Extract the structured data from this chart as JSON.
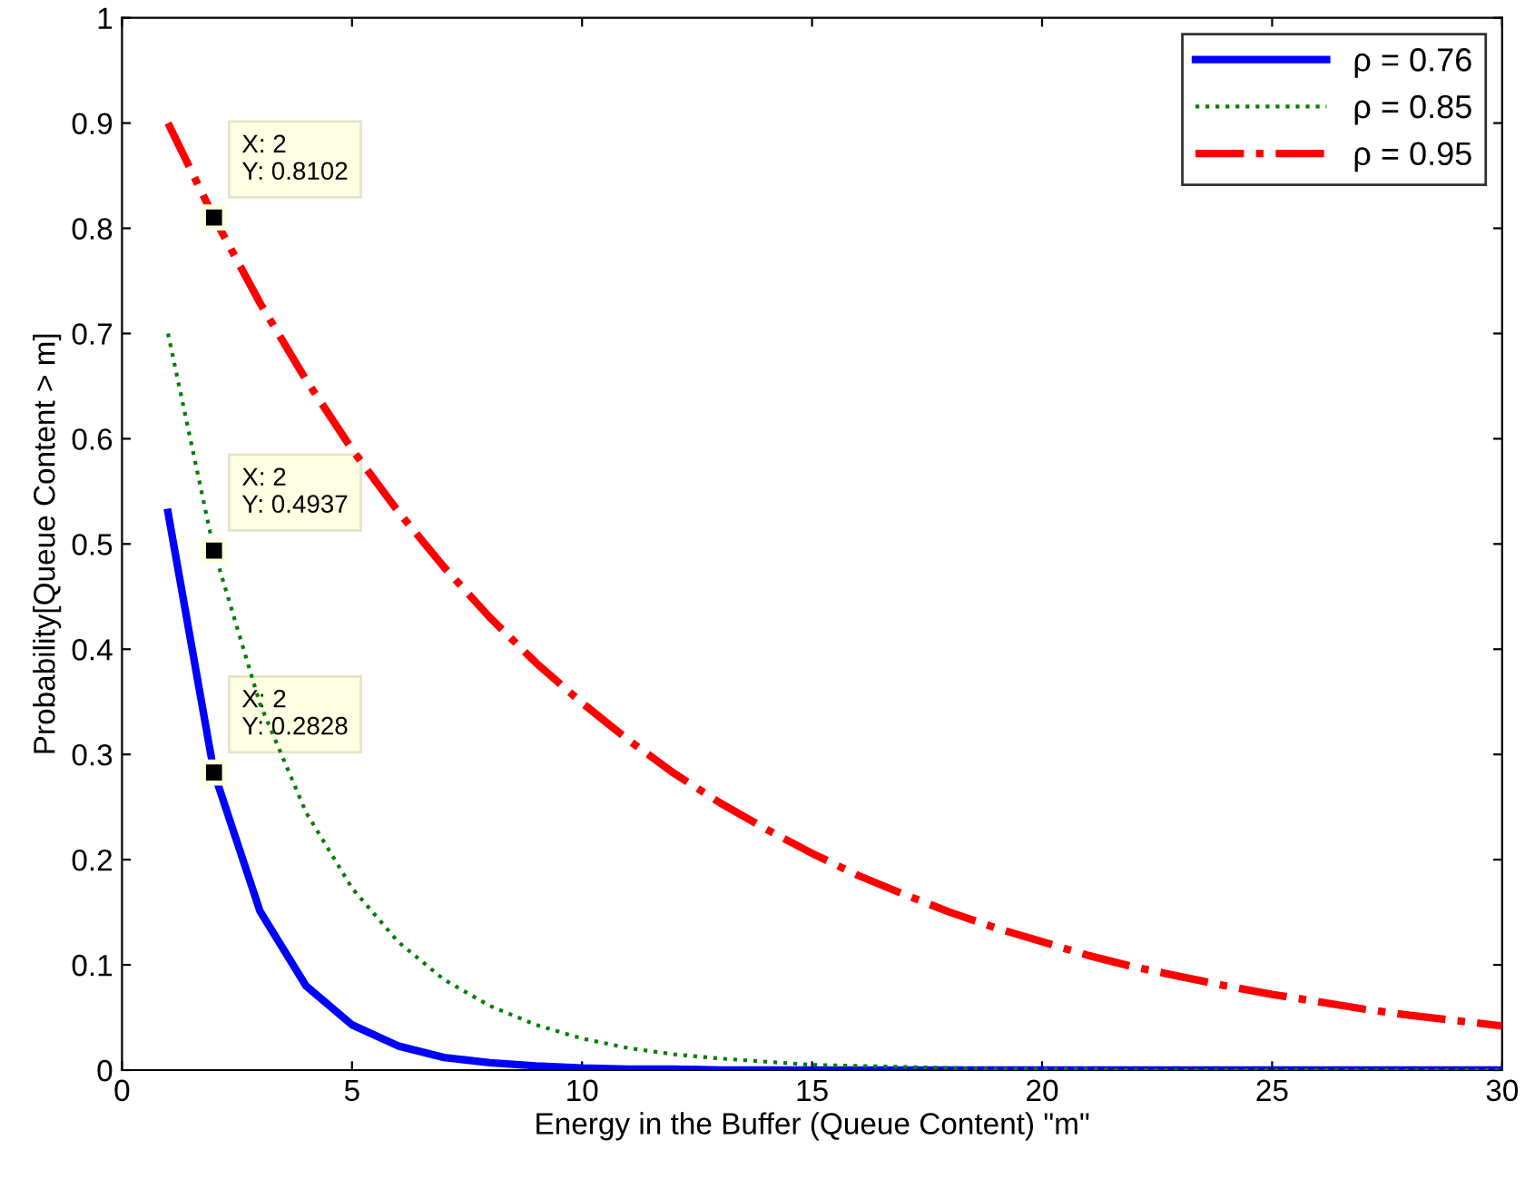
{
  "chart_data": {
    "type": "line",
    "xlabel": "Energy in the Buffer (Queue Content) \"m\"",
    "ylabel": "Probability[Queue Content > m]",
    "x": [
      1,
      2,
      3,
      4,
      5,
      6,
      7,
      8,
      9,
      10,
      11,
      12,
      13,
      14,
      15,
      16,
      17,
      18,
      19,
      20,
      21,
      22,
      23,
      24,
      25,
      26,
      27,
      28,
      29,
      30
    ],
    "series": [
      {
        "name": "ρ = 0.76",
        "color": "#0000ff",
        "line_style": "solid",
        "values": [
          0.53,
          0.2828,
          0.151,
          0.08,
          0.043,
          0.023,
          0.012,
          0.007,
          0.004,
          0.002,
          0.001,
          0.001,
          0,
          0,
          0,
          0,
          0,
          0,
          0,
          0,
          0,
          0,
          0,
          0,
          0,
          0,
          0,
          0,
          0,
          0
        ]
      },
      {
        "name": "ρ = 0.85",
        "color": "#007f00",
        "line_style": "dotted",
        "values": [
          0.7,
          0.4937,
          0.348,
          0.245,
          0.173,
          0.122,
          0.086,
          0.061,
          0.043,
          0.03,
          0.021,
          0.015,
          0.011,
          0.008,
          0.005,
          0.004,
          0.003,
          0.002,
          0.001,
          0.001,
          0.001,
          0,
          0,
          0,
          0,
          0,
          0,
          0,
          0,
          0
        ]
      },
      {
        "name": "ρ = 0.95",
        "color": "#ff0000",
        "line_style": "dashdot",
        "values": [
          0.9,
          0.8102,
          0.729,
          0.656,
          0.59,
          0.531,
          0.478,
          0.43,
          0.387,
          0.349,
          0.314,
          0.282,
          0.254,
          0.229,
          0.206,
          0.185,
          0.167,
          0.15,
          0.135,
          0.122,
          0.109,
          0.098,
          0.089,
          0.08,
          0.072,
          0.065,
          0.058,
          0.052,
          0.047,
          0.042
        ]
      },
      {
        "type": "scatter",
        "color": "#000000",
        "marker": "square",
        "values": [
          null,
          0.8102,
          null,
          null,
          null,
          null,
          null,
          null,
          null,
          null,
          null,
          null,
          null,
          null,
          null,
          null,
          null,
          null,
          null,
          null,
          null,
          null,
          null,
          null,
          null,
          null,
          null,
          null,
          null,
          null
        ],
        "value_labels": [
          null,
          "X: 2\nY: 0.8102",
          null,
          null,
          null,
          null,
          null,
          null,
          null,
          null,
          null,
          null,
          null,
          null,
          null,
          null,
          null,
          null,
          null,
          null,
          null,
          null,
          null,
          null,
          null,
          null,
          null,
          null,
          null,
          null
        ]
      },
      {
        "type": "scatter",
        "color": "#000000",
        "marker": "square",
        "values": [
          null,
          0.4937,
          null,
          null,
          null,
          null,
          null,
          null,
          null,
          null,
          null,
          null,
          null,
          null,
          null,
          null,
          null,
          null,
          null,
          null,
          null,
          null,
          null,
          null,
          null,
          null,
          null,
          null,
          null,
          null
        ],
        "value_labels": [
          null,
          "X: 2\nY: 0.4937",
          null,
          null,
          null,
          null,
          null,
          null,
          null,
          null,
          null,
          null,
          null,
          null,
          null,
          null,
          null,
          null,
          null,
          null,
          null,
          null,
          null,
          null,
          null,
          null,
          null,
          null,
          null,
          null
        ]
      },
      {
        "type": "scatter",
        "color": "#000000",
        "marker": "square",
        "values": [
          null,
          0.2828,
          null,
          null,
          null,
          null,
          null,
          null,
          null,
          null,
          null,
          null,
          null,
          null,
          null,
          null,
          null,
          null,
          null,
          null,
          null,
          null,
          null,
          null,
          null,
          null,
          null,
          null,
          null,
          null
        ],
        "value_labels": [
          null,
          "X: 2\nY: 0.2828",
          null,
          null,
          null,
          null,
          null,
          null,
          null,
          null,
          null,
          null,
          null,
          null,
          null,
          null,
          null,
          null,
          null,
          null,
          null,
          null,
          null,
          null,
          null,
          null,
          null,
          null,
          null,
          null
        ]
      }
    ],
    "xlim": [
      0,
      30
    ],
    "xticks": [
      0,
      5,
      10,
      15,
      20,
      25,
      30
    ],
    "ylim": [
      0,
      1
    ],
    "yticks": [
      0,
      0.1,
      0.2,
      0.3,
      0.4,
      0.5,
      0.6,
      0.7,
      0.8,
      0.9,
      1
    ],
    "grid": false,
    "legend": "top right",
    "marker": "none"
  }
}
